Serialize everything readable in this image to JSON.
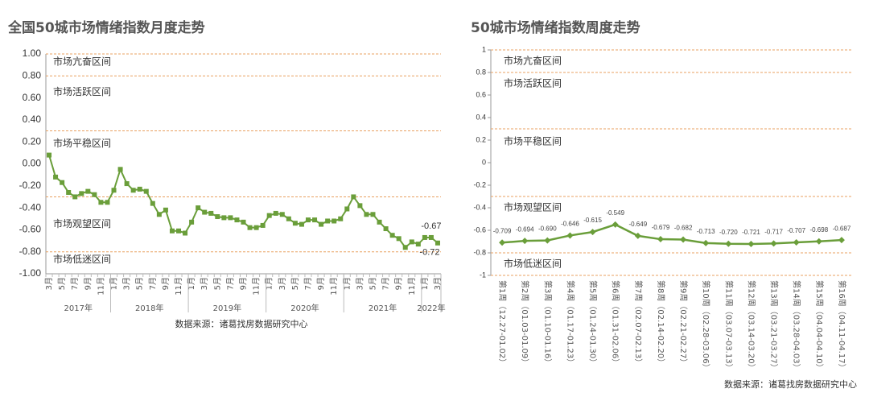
{
  "chart_data": [
    {
      "type": "line",
      "title": "全国50城市场情绪指数月度走势",
      "color": "#6a9e3a",
      "zone_color": "#e8a060",
      "marker": "square",
      "categories": [
        "3月",
        null,
        "5月",
        null,
        "7月",
        null,
        "9月",
        null,
        "11月",
        null,
        "1月",
        null,
        "3月",
        null,
        "5月",
        null,
        "7月",
        null,
        "9月",
        null,
        "11月",
        null,
        "1月",
        null,
        "3月",
        null,
        "5月",
        null,
        "7月",
        null,
        "9月",
        null,
        "11月",
        null,
        "1月",
        null,
        "3月",
        null,
        "5月",
        null,
        "7月",
        null,
        "9月",
        null,
        "11月",
        null,
        "1月",
        null,
        "3月",
        null,
        "5月",
        null,
        "7月",
        null,
        "9月",
        null,
        "11月",
        null,
        "1月",
        null,
        "3月"
      ],
      "groups": [
        {
          "label": "2017年",
          "count": 10
        },
        {
          "label": "2018年",
          "count": 12
        },
        {
          "label": "2019年",
          "count": 12
        },
        {
          "label": "2020年",
          "count": 12
        },
        {
          "label": "2021年",
          "count": 12
        },
        {
          "label": "2022年",
          "count": 3
        }
      ],
      "values": [
        0.08,
        -0.12,
        -0.17,
        -0.26,
        -0.3,
        -0.27,
        -0.25,
        -0.28,
        -0.35,
        -0.35,
        -0.24,
        -0.05,
        -0.18,
        -0.24,
        -0.23,
        -0.25,
        -0.36,
        -0.46,
        -0.42,
        -0.61,
        -0.61,
        -0.63,
        -0.53,
        -0.4,
        -0.44,
        -0.45,
        -0.48,
        -0.49,
        -0.49,
        -0.51,
        -0.53,
        -0.58,
        -0.58,
        -0.56,
        -0.47,
        -0.45,
        -0.46,
        -0.5,
        -0.54,
        -0.55,
        -0.51,
        -0.51,
        -0.55,
        -0.52,
        -0.52,
        -0.5,
        -0.41,
        -0.3,
        -0.38,
        -0.46,
        -0.46,
        -0.53,
        -0.59,
        -0.65,
        -0.68,
        -0.76,
        -0.71,
        -0.73,
        -0.67,
        -0.67,
        -0.72
      ],
      "value_labels": [
        null,
        null,
        null,
        null,
        null,
        null,
        null,
        null,
        null,
        null,
        null,
        null,
        null,
        null,
        null,
        null,
        null,
        null,
        null,
        null,
        null,
        null,
        null,
        null,
        null,
        null,
        null,
        null,
        null,
        null,
        null,
        null,
        null,
        null,
        null,
        null,
        null,
        null,
        null,
        null,
        null,
        null,
        null,
        null,
        null,
        null,
        null,
        null,
        null,
        null,
        null,
        null,
        null,
        null,
        null,
        null,
        null,
        null,
        null,
        "-0.67",
        "-0.72"
      ],
      "ylim": [
        -1,
        1
      ],
      "yticks": [
        {
          "value": 1,
          "label": "1.00"
        },
        {
          "value": 0.8,
          "label": "0.80"
        },
        {
          "value": 0.6,
          "label": "0.60"
        },
        {
          "value": 0.4,
          "label": "0.40"
        },
        {
          "value": 0.2,
          "label": "0.20"
        },
        {
          "value": 0,
          "label": "0.00"
        },
        {
          "value": -0.2,
          "label": "-0.20"
        },
        {
          "value": -0.4,
          "label": "-0.40"
        },
        {
          "value": -0.6,
          "label": "-0.60"
        },
        {
          "value": -0.8,
          "label": "-0.80"
        },
        {
          "value": -1,
          "label": "-1.00"
        }
      ],
      "zone_lines": [
        1,
        0.8,
        0.3,
        -0.3,
        -0.8
      ],
      "zones": [
        "市场亢奋区间",
        "市场活跃区间",
        "市场平稳区间",
        "市场观望区间",
        "市场低迷区间"
      ],
      "source": "数据来源：诸葛找房数据研究中心"
    },
    {
      "type": "line",
      "title": "50城市场情绪指数周度走势",
      "color": "#6a9e3a",
      "zone_color": "#e8a060",
      "marker": "diamond",
      "categories": [
        "第1周（12.27-01.02）",
        "第2周（01.03-01.09）",
        "第3周（01.10-01.16）",
        "第4周（01.17-01.23）",
        "第5周（01.24-01.30）",
        "第6周（01.31-02.06）",
        "第7周（02.07-02.13）",
        "第8周（02.14-02.20）",
        "第9周（02.21-02.27）",
        "第10周（02.28-03.06）",
        "第11周（03.07-03.13）",
        "第12周（03.14-03.20）",
        "第13周（03.21-03.27）",
        "第14周（03.28-04.03）",
        "第15周（04.04-04.10）",
        "第16周（04.11-04.17）"
      ],
      "values": [
        -0.709,
        -0.694,
        -0.69,
        -0.646,
        -0.615,
        -0.549,
        -0.649,
        -0.679,
        -0.682,
        -0.713,
        -0.72,
        -0.721,
        -0.717,
        -0.707,
        -0.698,
        -0.687
      ],
      "value_labels": [
        "-0.709",
        "-0.694",
        "-0.690",
        "-0.646",
        "-0.615",
        "-0.549",
        "-0.649",
        "-0.679",
        "-0.682",
        "-0.713",
        "-0.720",
        "-0.721",
        "-0.717",
        "-0.707",
        "-0.698",
        "-0.687"
      ],
      "ylim": [
        -1,
        1
      ],
      "yticks": [
        1,
        0.8,
        0.6,
        0.4,
        0.2,
        0,
        -0.2,
        -0.4,
        -0.6,
        -0.8,
        -1
      ],
      "zone_lines": [
        1,
        0.8,
        0.3,
        -0.3,
        -0.8,
        -1
      ],
      "zones": [
        "市场亢奋区间",
        "市场活跃区间",
        "市场平稳区间",
        "市场观望区间",
        "市场低迷区间"
      ],
      "source": "数据来源：诸葛找房数据研究中心"
    }
  ]
}
